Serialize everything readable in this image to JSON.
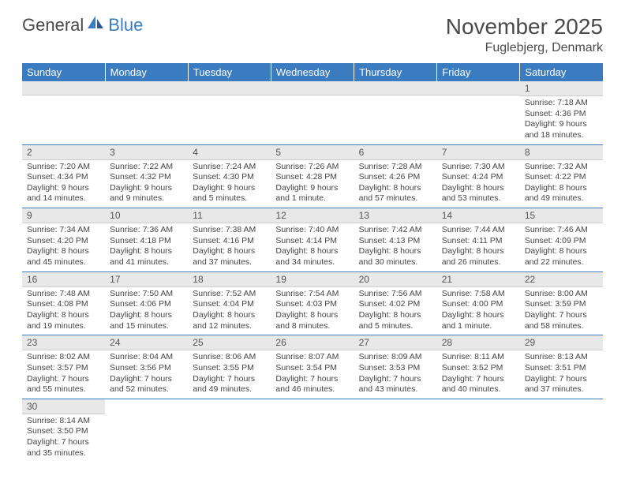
{
  "brand": {
    "part1": "General",
    "part2": "Blue"
  },
  "title": "November 2025",
  "location": "Fuglebjerg, Denmark",
  "colors": {
    "header_bg": "#3b7bbf",
    "header_text": "#ffffff",
    "daynum_bg": "#e8e8e8",
    "border": "#3b7bbf",
    "body_text": "#444444"
  },
  "weekdays": [
    "Sunday",
    "Monday",
    "Tuesday",
    "Wednesday",
    "Thursday",
    "Friday",
    "Saturday"
  ],
  "weeks": [
    [
      null,
      null,
      null,
      null,
      null,
      null,
      {
        "n": "1",
        "sr": "7:18 AM",
        "ss": "4:36 PM",
        "dl": "9 hours and 18 minutes."
      }
    ],
    [
      {
        "n": "2",
        "sr": "7:20 AM",
        "ss": "4:34 PM",
        "dl": "9 hours and 14 minutes."
      },
      {
        "n": "3",
        "sr": "7:22 AM",
        "ss": "4:32 PM",
        "dl": "9 hours and 9 minutes."
      },
      {
        "n": "4",
        "sr": "7:24 AM",
        "ss": "4:30 PM",
        "dl": "9 hours and 5 minutes."
      },
      {
        "n": "5",
        "sr": "7:26 AM",
        "ss": "4:28 PM",
        "dl": "9 hours and 1 minute."
      },
      {
        "n": "6",
        "sr": "7:28 AM",
        "ss": "4:26 PM",
        "dl": "8 hours and 57 minutes."
      },
      {
        "n": "7",
        "sr": "7:30 AM",
        "ss": "4:24 PM",
        "dl": "8 hours and 53 minutes."
      },
      {
        "n": "8",
        "sr": "7:32 AM",
        "ss": "4:22 PM",
        "dl": "8 hours and 49 minutes."
      }
    ],
    [
      {
        "n": "9",
        "sr": "7:34 AM",
        "ss": "4:20 PM",
        "dl": "8 hours and 45 minutes."
      },
      {
        "n": "10",
        "sr": "7:36 AM",
        "ss": "4:18 PM",
        "dl": "8 hours and 41 minutes."
      },
      {
        "n": "11",
        "sr": "7:38 AM",
        "ss": "4:16 PM",
        "dl": "8 hours and 37 minutes."
      },
      {
        "n": "12",
        "sr": "7:40 AM",
        "ss": "4:14 PM",
        "dl": "8 hours and 34 minutes."
      },
      {
        "n": "13",
        "sr": "7:42 AM",
        "ss": "4:13 PM",
        "dl": "8 hours and 30 minutes."
      },
      {
        "n": "14",
        "sr": "7:44 AM",
        "ss": "4:11 PM",
        "dl": "8 hours and 26 minutes."
      },
      {
        "n": "15",
        "sr": "7:46 AM",
        "ss": "4:09 PM",
        "dl": "8 hours and 22 minutes."
      }
    ],
    [
      {
        "n": "16",
        "sr": "7:48 AM",
        "ss": "4:08 PM",
        "dl": "8 hours and 19 minutes."
      },
      {
        "n": "17",
        "sr": "7:50 AM",
        "ss": "4:06 PM",
        "dl": "8 hours and 15 minutes."
      },
      {
        "n": "18",
        "sr": "7:52 AM",
        "ss": "4:04 PM",
        "dl": "8 hours and 12 minutes."
      },
      {
        "n": "19",
        "sr": "7:54 AM",
        "ss": "4:03 PM",
        "dl": "8 hours and 8 minutes."
      },
      {
        "n": "20",
        "sr": "7:56 AM",
        "ss": "4:02 PM",
        "dl": "8 hours and 5 minutes."
      },
      {
        "n": "21",
        "sr": "7:58 AM",
        "ss": "4:00 PM",
        "dl": "8 hours and 1 minute."
      },
      {
        "n": "22",
        "sr": "8:00 AM",
        "ss": "3:59 PM",
        "dl": "7 hours and 58 minutes."
      }
    ],
    [
      {
        "n": "23",
        "sr": "8:02 AM",
        "ss": "3:57 PM",
        "dl": "7 hours and 55 minutes."
      },
      {
        "n": "24",
        "sr": "8:04 AM",
        "ss": "3:56 PM",
        "dl": "7 hours and 52 minutes."
      },
      {
        "n": "25",
        "sr": "8:06 AM",
        "ss": "3:55 PM",
        "dl": "7 hours and 49 minutes."
      },
      {
        "n": "26",
        "sr": "8:07 AM",
        "ss": "3:54 PM",
        "dl": "7 hours and 46 minutes."
      },
      {
        "n": "27",
        "sr": "8:09 AM",
        "ss": "3:53 PM",
        "dl": "7 hours and 43 minutes."
      },
      {
        "n": "28",
        "sr": "8:11 AM",
        "ss": "3:52 PM",
        "dl": "7 hours and 40 minutes."
      },
      {
        "n": "29",
        "sr": "8:13 AM",
        "ss": "3:51 PM",
        "dl": "7 hours and 37 minutes."
      }
    ],
    [
      {
        "n": "30",
        "sr": "8:14 AM",
        "ss": "3:50 PM",
        "dl": "7 hours and 35 minutes."
      },
      null,
      null,
      null,
      null,
      null,
      null
    ]
  ],
  "labels": {
    "sunrise": "Sunrise: ",
    "sunset": "Sunset: ",
    "daylight": "Daylight: "
  }
}
